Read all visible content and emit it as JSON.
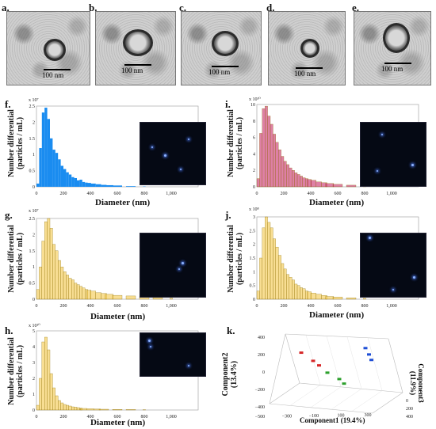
{
  "panels": {
    "a": "a.",
    "b": "b.",
    "c": "c.",
    "d": "d.",
    "e": "e.",
    "f": "f.",
    "g": "g.",
    "h": "h.",
    "i": "i.",
    "j": "j.",
    "k": "k."
  },
  "tem_scale_label": "100 nm",
  "nta": {
    "ylabel_line1": "Number differential",
    "ylabel_line2": "(particles / mL)",
    "xlabel": "Diameter (nm)",
    "f_exp": "x 10⁷",
    "g_exp": "x 10⁷",
    "h_exp": "x 10¹⁰",
    "i_exp": "x 10¹⁰",
    "j_exp": "x 10⁸"
  },
  "pca": {
    "xlabel": "Component1 (19.4%)",
    "ylabel_line1": "Component2",
    "ylabel_line2": "(13.4%)",
    "zlabel_line1": "Component3",
    "zlabel_line2": "(11.9%)",
    "x_ticks": [
      "−500",
      "−300",
      "−100",
      "100",
      "300"
    ],
    "y_ticks": [
      "400",
      "200",
      "0",
      "−200",
      "−400"
    ],
    "z_ticks": [
      "400",
      "200",
      "0"
    ]
  },
  "chart_data": [
    {
      "type": "bar",
      "panel": "f",
      "xlabel": "Diameter (nm)",
      "ylabel": "Number differential (particles / mL)",
      "x_ticks": [
        0,
        200,
        400,
        600,
        800,
        1000
      ],
      "y_ticks": [
        0,
        0.5,
        1.0,
        1.5,
        2.0,
        2.5
      ],
      "series": [
        {
          "color": "#1a8cf0",
          "x": [
            10,
            30,
            50,
            70,
            90,
            110,
            130,
            150,
            170,
            190,
            210,
            230,
            250,
            270,
            290,
            310,
            330,
            350,
            370,
            390,
            420,
            460,
            500,
            540,
            600,
            700,
            800
          ],
          "values": [
            0.1,
            1.2,
            2.3,
            2.45,
            2.1,
            1.5,
            1.15,
            1.05,
            0.85,
            0.65,
            0.55,
            0.45,
            0.38,
            0.3,
            0.27,
            0.2,
            0.22,
            0.15,
            0.13,
            0.12,
            0.1,
            0.08,
            0.06,
            0.05,
            0.04,
            0.02,
            0.01
          ]
        }
      ]
    },
    {
      "type": "bar",
      "panel": "g",
      "xlabel": "Diameter (nm)",
      "ylabel": "Number differential (particles / mL)",
      "x_ticks": [
        0,
        200,
        400,
        600,
        800,
        1000
      ],
      "y_ticks": [
        0,
        0.5,
        1.0,
        1.5,
        2.0,
        2.5
      ],
      "series": [
        {
          "color": "#f2c23a",
          "x": [
            10,
            30,
            50,
            70,
            90,
            110,
            130,
            150,
            170,
            190,
            210,
            230,
            250,
            270,
            290,
            310,
            330,
            350,
            370,
            390,
            420,
            460,
            500,
            540,
            600,
            700,
            800,
            900,
            1000
          ],
          "values": [
            0.3,
            1.0,
            1.8,
            2.4,
            2.5,
            2.2,
            1.7,
            1.5,
            1.2,
            1.0,
            0.85,
            0.75,
            0.65,
            0.6,
            0.5,
            0.45,
            0.4,
            0.35,
            0.3,
            0.28,
            0.25,
            0.2,
            0.18,
            0.15,
            0.12,
            0.1,
            0.08,
            0.05,
            0.03
          ]
        }
      ]
    },
    {
      "type": "bar",
      "panel": "h",
      "xlabel": "Diameter (nm)",
      "ylabel": "Number differential (particles / mL)",
      "x_ticks": [
        0,
        200,
        400,
        600,
        800,
        1000
      ],
      "y_ticks": [
        0,
        1.0,
        2.0,
        3.0,
        4.0,
        5.0
      ],
      "series": [
        {
          "color": "#f2c23a",
          "x": [
            10,
            30,
            50,
            70,
            90,
            110,
            130,
            150,
            170,
            190,
            210,
            230,
            250,
            270,
            290,
            310,
            330,
            350,
            400,
            450,
            500,
            600,
            700,
            800
          ],
          "values": [
            0.3,
            2.0,
            4.3,
            4.6,
            3.8,
            2.3,
            1.4,
            0.9,
            0.6,
            0.45,
            0.35,
            0.3,
            0.25,
            0.2,
            0.18,
            0.15,
            0.12,
            0.1,
            0.08,
            0.06,
            0.05,
            0.04,
            0.03,
            0.02
          ]
        }
      ]
    },
    {
      "type": "bar",
      "panel": "i",
      "xlabel": "Diameter (nm)",
      "ylabel": "Number differential (particles / mL)",
      "x_ticks": [
        0,
        200,
        400,
        600,
        800,
        1000
      ],
      "y_ticks": [
        0,
        2,
        4,
        6,
        8,
        10
      ],
      "series": [
        {
          "color": "#c2185b",
          "x": [
            10,
            30,
            50,
            70,
            90,
            110,
            130,
            150,
            170,
            190,
            210,
            230,
            250,
            270,
            290,
            310,
            330,
            350,
            370,
            390,
            420,
            460,
            500,
            540,
            600,
            700,
            800
          ],
          "values": [
            1.0,
            6.5,
            9.5,
            9.8,
            8.6,
            7.6,
            6.4,
            5.4,
            4.5,
            3.7,
            3.1,
            2.7,
            2.3,
            2.0,
            1.7,
            1.5,
            1.3,
            1.1,
            1.0,
            0.9,
            0.8,
            0.6,
            0.5,
            0.4,
            0.3,
            0.2,
            0.1
          ]
        }
      ]
    },
    {
      "type": "bar",
      "panel": "j",
      "xlabel": "Diameter (nm)",
      "ylabel": "Number differential (particles / mL)",
      "x_ticks": [
        0,
        200,
        400,
        600,
        800,
        1000
      ],
      "y_ticks": [
        0,
        0.5,
        1.0,
        1.5,
        2.0,
        2.5,
        3.0
      ],
      "series": [
        {
          "color": "#f2c23a",
          "x": [
            10,
            30,
            50,
            70,
            90,
            110,
            130,
            150,
            170,
            190,
            210,
            230,
            250,
            270,
            290,
            310,
            330,
            350,
            370,
            390,
            420,
            460,
            500,
            540,
            600,
            700,
            800
          ],
          "values": [
            0.3,
            1.5,
            2.6,
            3.0,
            2.8,
            2.6,
            2.2,
            1.9,
            1.6,
            1.3,
            1.1,
            0.9,
            0.8,
            0.7,
            0.55,
            0.5,
            0.42,
            0.38,
            0.3,
            0.27,
            0.22,
            0.18,
            0.14,
            0.1,
            0.08,
            0.05,
            0.03
          ]
        }
      ]
    },
    {
      "type": "scatter",
      "panel": "k",
      "xlabel": "Component1 (19.4%)",
      "ylabel": "Component2 (13.4%)",
      "zlabel": "Component3 (11.9%)",
      "series": [
        {
          "color": "#d62728",
          "x": [
            -300,
            -200,
            -150
          ],
          "y": [
            230,
            140,
            90
          ]
        },
        {
          "color": "#2ca02c",
          "x": [
            -80,
            20,
            60
          ],
          "y": [
            10,
            -60,
            -110
          ]
        },
        {
          "color": "#1f4fd6",
          "x": [
            240,
            270,
            290
          ],
          "y": [
            280,
            210,
            150
          ]
        }
      ]
    }
  ]
}
